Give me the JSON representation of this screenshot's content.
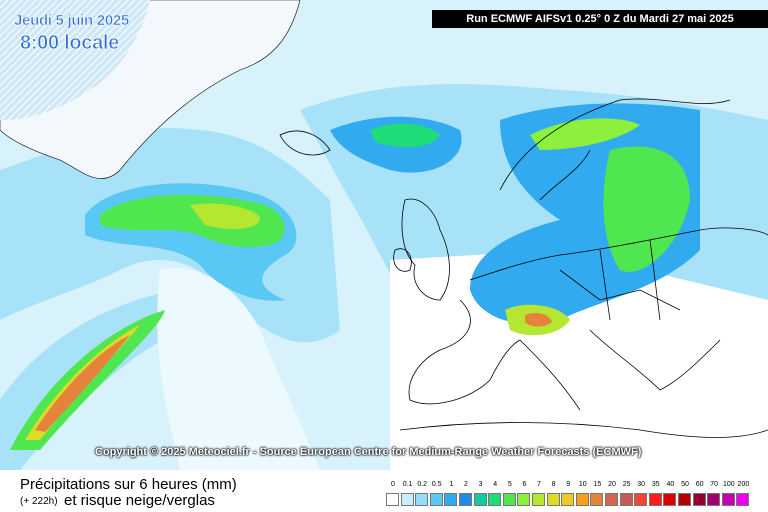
{
  "header": {
    "date": "Jeudi 5 juin 2025",
    "time": "8:00 locale",
    "run": "Run ECMWF AIFSv1 0.25° 0 Z du Mardi 27 mai 2025"
  },
  "copyright": "Copyright © 2025 Meteociel.fr - Source European Centre for Medium-Range Weather Forecasts (ECMWF)",
  "legend": {
    "title": "Précipitations sur 6 heures (mm)",
    "step": "(+ 222h)",
    "subtitle": "et risque neige/verglas",
    "scale": [
      {
        "label": 0,
        "color": "#ffffff"
      },
      {
        "label": 0.1,
        "color": "#c8f0ff"
      },
      {
        "label": 0.2,
        "color": "#96dcfa"
      },
      {
        "label": 0.5,
        "color": "#5ac8f5"
      },
      {
        "label": 1,
        "color": "#32aaf0"
      },
      {
        "label": 2,
        "color": "#1e8ce6"
      },
      {
        "label": 3,
        "color": "#14c8a0"
      },
      {
        "label": 4,
        "color": "#1edc78"
      },
      {
        "label": 5,
        "color": "#50e650"
      },
      {
        "label": 6,
        "color": "#8cf03c"
      },
      {
        "label": 7,
        "color": "#b4e632"
      },
      {
        "label": 8,
        "color": "#dcdc28"
      },
      {
        "label": 9,
        "color": "#f0c828"
      },
      {
        "label": 10,
        "color": "#f5a01e"
      },
      {
        "label": 15,
        "color": "#e6823c"
      },
      {
        "label": 20,
        "color": "#d26450"
      },
      {
        "label": 25,
        "color": "#c85a5a"
      },
      {
        "label": 30,
        "color": "#f04632"
      },
      {
        "label": 35,
        "color": "#ff1e1e"
      },
      {
        "label": 40,
        "color": "#dc0000"
      },
      {
        "label": 50,
        "color": "#b40000"
      },
      {
        "label": 60,
        "color": "#960032"
      },
      {
        "label": 70,
        "color": "#a0006e"
      },
      {
        "label": 100,
        "color": "#c800b4"
      },
      {
        "label": 200,
        "color": "#f000f0"
      }
    ]
  }
}
